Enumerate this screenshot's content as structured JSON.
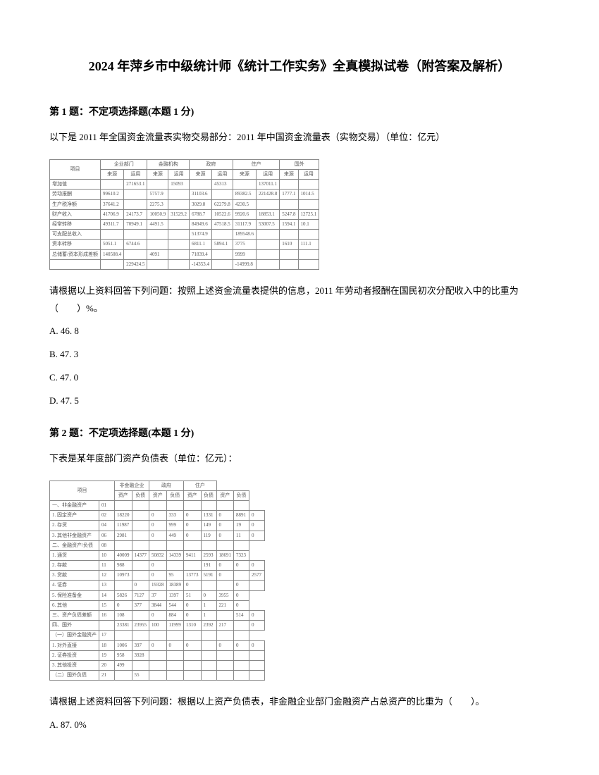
{
  "title": "2024 年萍乡市中级统计师《统计工作实务》全真模拟试卷（附答案及解析）",
  "q1": {
    "header": "第 1 题：不定项选择题(本题 1 分)",
    "intro": "以下是 2011 年全国资金流量表实物交易部分：2011 年中国资金流量表（实物交易）（单位：亿元）",
    "sub": "请根据以上资料回答下列问题：按照上述资金流量表提供的信息，2011 年劳动者报酬在国民初次分配收入中的比重为（　　）%。",
    "optA": "A. 46. 8",
    "optB": "B. 47. 3",
    "optC": "C. 47. 0",
    "optD": "D. 47. 5"
  },
  "q2": {
    "header": "第 2 题：不定项选择题(本题 1 分)",
    "intro": "下表是某年度部门资产负债表（单位：亿元）：",
    "sub": "请根据上述资料回答下列问题：根据以上资产负债表，非金融企业部门金融资产占总资产的比重为（　　）。",
    "optA": "A. 87. 0%"
  },
  "table1": {
    "headers": [
      "项目",
      "企业部门",
      "金融机构",
      "政府",
      "住户",
      "国外"
    ],
    "subheaders": [
      "来源",
      "运用",
      "来源",
      "运用",
      "来源",
      "运用",
      "来源",
      "运用",
      "来源",
      "运用"
    ],
    "rows": [
      [
        "增加值",
        "",
        "271653.1",
        "",
        "15093",
        "",
        "45313",
        "",
        "137011.1",
        "",
        ""
      ],
      [
        "劳动报酬",
        "99610.2",
        "",
        "5757.9",
        "",
        "31103.6",
        "",
        "89382.5",
        "221428.8",
        "1777.1",
        "1014.5"
      ],
      [
        "生产税净额",
        "37641.2",
        "",
        "2275.3",
        "",
        "3029.8",
        "62279.8",
        "4230.5",
        "",
        "",
        ""
      ],
      [
        "财产收入",
        "41706.9",
        "24173.7",
        "10050.9",
        "31529.2",
        "6788.7",
        "10522.6",
        "9920.6",
        "18853.1",
        "5247.8",
        "12725.1"
      ],
      [
        "经常转移",
        "49311.7",
        "70949.1",
        "4491.5",
        "",
        "84949.6",
        "47518.5",
        "31117.9",
        "53007.5",
        "1594.1",
        "10.1"
      ],
      [
        "可支配总收入",
        "",
        "",
        "",
        "",
        "51374.9",
        "",
        "189548.6",
        "",
        "",
        ""
      ],
      [
        "资本转移",
        "5051.1",
        "6744.6",
        "",
        "",
        "6811.1",
        "5894.1",
        "3775",
        "",
        "1610",
        "111.1"
      ],
      [
        "总储蓄/资本形成差额",
        "140508.4",
        "",
        "4091",
        "",
        "71839.4",
        "",
        "9999",
        "",
        "",
        ""
      ],
      [
        "",
        "",
        "229424.5",
        "",
        "",
        "-14353.4",
        "",
        "-14999.8",
        "",
        "",
        ""
      ]
    ]
  },
  "table2": {
    "headers": [
      "项目",
      "",
      "非金融企业",
      "政府",
      "住户"
    ],
    "subheaders": [
      "",
      "",
      "资产",
      "负债",
      "资产",
      "负债",
      "资产",
      "负债",
      "资产",
      "负债"
    ],
    "rows": [
      [
        "一、非金融资产",
        "01",
        "",
        "",
        "",
        "",
        "",
        "",
        "",
        ""
      ],
      [
        "1. 固定资产",
        "02",
        "18220",
        "",
        "0",
        "333",
        "0",
        "1331",
        "0",
        "8891",
        "0"
      ],
      [
        "2. 存货",
        "04",
        "11987",
        "",
        "0",
        "999",
        "0",
        "149",
        "0",
        "19",
        "0"
      ],
      [
        "3. 其他非金融资产",
        "06",
        "2981",
        "",
        "0",
        "449",
        "0",
        "119",
        "0",
        "11",
        "0"
      ],
      [
        "二、金融资产/负债",
        "08",
        "",
        "",
        "",
        "",
        "",
        "",
        "",
        ""
      ],
      [
        "1. 通货",
        "10",
        "40009",
        "14377",
        "50832",
        "14339",
        "9411",
        "2593",
        "18691",
        "7323"
      ],
      [
        "2. 存款",
        "11",
        "988",
        "",
        "0",
        "",
        "",
        "191",
        "0",
        "0",
        "0"
      ],
      [
        "3. 贷款",
        "12",
        "10973",
        "",
        "0",
        "95",
        "13773",
        "5191",
        "0",
        "",
        "2577"
      ],
      [
        "4. 证券",
        "13",
        "",
        "0",
        "19328",
        "18389",
        "0",
        "",
        "",
        "0",
        ""
      ],
      [
        "5. 保险准备金",
        "14",
        "5826",
        "7127",
        "37",
        "1397",
        "51",
        "0",
        "3955",
        "0"
      ],
      [
        "6. 其他",
        "15",
        "0",
        "377",
        "3844",
        "544",
        "0",
        "1",
        "221",
        "0"
      ],
      [
        "三、资产负债差额",
        "16",
        "108",
        "",
        "0",
        "884",
        "0",
        "1",
        "",
        "514",
        "0"
      ],
      [
        "四、国外",
        "",
        "23381",
        "23955",
        "100",
        "11999",
        "1310",
        "2392",
        "217",
        "",
        "0"
      ],
      [
        "（一）国外金融资产",
        "17",
        "",
        "",
        "",
        "",
        "",
        "",
        "",
        ""
      ],
      [
        "1. 对外直接",
        "18",
        "1006",
        "397",
        "0",
        "0",
        "0",
        "",
        "0",
        "0",
        "0"
      ],
      [
        "2. 证券投资",
        "19",
        "958",
        "3928",
        "",
        "",
        "",
        "",
        "",
        "",
        ""
      ],
      [
        "3. 其他投资",
        "20",
        "499",
        "",
        "",
        "",
        "",
        "",
        "",
        "",
        ""
      ],
      [
        "（二）国外负债",
        "21",
        "",
        "55",
        "",
        "",
        "",
        "",
        "",
        "",
        ""
      ]
    ]
  }
}
